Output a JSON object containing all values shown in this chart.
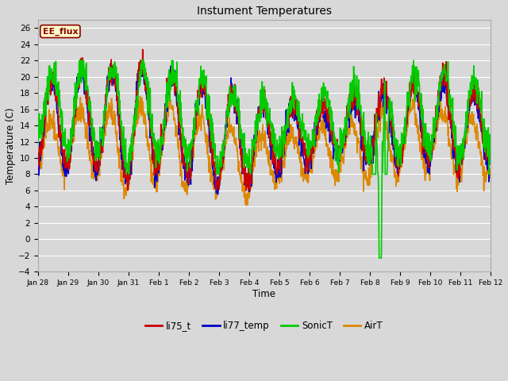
{
  "title": "Instument Temperatures",
  "xlabel": "Time",
  "ylabel": "Temperature (C)",
  "ylim": [
    -4,
    27
  ],
  "yticks": [
    -4,
    -2,
    0,
    2,
    4,
    6,
    8,
    10,
    12,
    14,
    16,
    18,
    20,
    22,
    24,
    26
  ],
  "fig_bg": "#d8d8d8",
  "plot_bg": "#d8d8d8",
  "grid_color": "#ffffff",
  "annotation_text": "EE_flux",
  "annotation_bg": "#ffffcc",
  "annotation_border": "#8b0000",
  "series_colors": {
    "li75_t": "#cc0000",
    "li77_temp": "#0000cc",
    "SonicT": "#00cc00",
    "AirT": "#dd8800"
  },
  "x_tick_labels": [
    "Jan 28",
    "Jan 29",
    "Jan 30",
    "Jan 31",
    "Feb 1",
    "Feb 2",
    "Feb 3",
    "Feb 4",
    "Feb 5",
    "Feb 6",
    "Feb 7",
    "Feb 8",
    "Feb 9",
    "Feb 10",
    "Feb 11",
    "Feb 12"
  ],
  "num_points": 1440,
  "days": 15,
  "lw": 1.2
}
